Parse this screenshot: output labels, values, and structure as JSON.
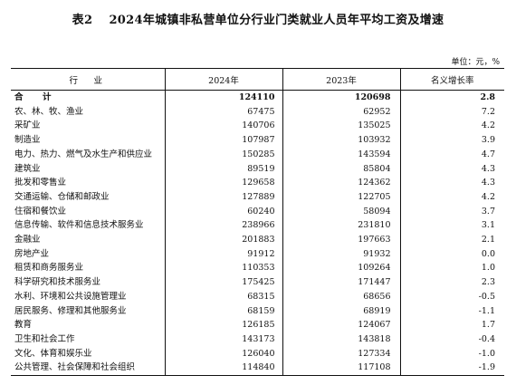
{
  "title": "表2　 2024年城镇非私营单位分行业门类就业人员年平均工资及增速",
  "unit": "单位：元，%",
  "table": {
    "headers": [
      "行　业",
      "2024年",
      "2023年",
      "名义增长率"
    ],
    "rows": [
      {
        "name": "合　计",
        "y2024": "124110",
        "y2023": "120698",
        "growth": "2.8"
      },
      {
        "name": "农、林、牧、渔业",
        "y2024": "67475",
        "y2023": "62952",
        "growth": "7.2"
      },
      {
        "name": "采矿业",
        "y2024": "140706",
        "y2023": "135025",
        "growth": "4.2"
      },
      {
        "name": "制造业",
        "y2024": "107987",
        "y2023": "103932",
        "growth": "3.9"
      },
      {
        "name": "电力、热力、燃气及水生产和供应业",
        "y2024": "150285",
        "y2023": "143594",
        "growth": "4.7"
      },
      {
        "name": "建筑业",
        "y2024": "89519",
        "y2023": "85804",
        "growth": "4.3"
      },
      {
        "name": "批发和零售业",
        "y2024": "129658",
        "y2023": "124362",
        "growth": "4.3"
      },
      {
        "name": "交通运输、仓储和邮政业",
        "y2024": "127889",
        "y2023": "122705",
        "growth": "4.2"
      },
      {
        "name": "住宿和餐饮业",
        "y2024": "60240",
        "y2023": "58094",
        "growth": "3.7"
      },
      {
        "name": "信息传输、软件和信息技术服务业",
        "y2024": "238966",
        "y2023": "231810",
        "growth": "3.1"
      },
      {
        "name": "金融业",
        "y2024": "201883",
        "y2023": "197663",
        "growth": "2.1"
      },
      {
        "name": "房地产业",
        "y2024": "91912",
        "y2023": "91932",
        "growth": "0.0"
      },
      {
        "name": "租赁和商务服务业",
        "y2024": "110353",
        "y2023": "109264",
        "growth": "1.0"
      },
      {
        "name": "科学研究和技术服务业",
        "y2024": "175425",
        "y2023": "171447",
        "growth": "2.3"
      },
      {
        "name": "水利、环境和公共设施管理业",
        "y2024": "68315",
        "y2023": "68656",
        "growth": "-0.5"
      },
      {
        "name": "居民服务、修理和其他服务业",
        "y2024": "68159",
        "y2023": "68919",
        "growth": "-1.1"
      },
      {
        "name": "教育",
        "y2024": "126185",
        "y2023": "124067",
        "growth": "1.7"
      },
      {
        "name": "卫生和社会工作",
        "y2024": "143173",
        "y2023": "143818",
        "growth": "-0.4"
      },
      {
        "name": "文化、体育和娱乐业",
        "y2024": "126040",
        "y2023": "127334",
        "growth": "-1.0"
      },
      {
        "name": "公共管理、社会保障和社会组织",
        "y2024": "114840",
        "y2023": "117108",
        "growth": "-1.9"
      }
    ]
  }
}
